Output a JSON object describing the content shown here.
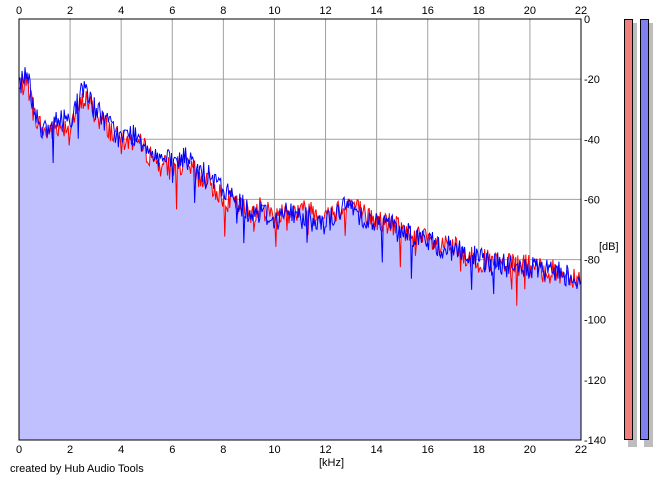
{
  "credit": "created by Hub Audio Tools",
  "x_unit": "[kHz]",
  "y_unit": "[dB]",
  "colors": {
    "background": "#ffffff",
    "grid": "#a0a0a0",
    "fill": "#c0c0ff",
    "left_channel": "#ff0000",
    "right_channel": "#0000ff",
    "meter_left": "#f08080",
    "meter_right": "#8080f0"
  },
  "meters": {
    "left_level_fraction": 1.0,
    "right_level_fraction": 1.0
  },
  "chart_data": {
    "type": "area",
    "x_ticks": [
      0,
      2,
      4,
      6,
      8,
      10,
      12,
      14,
      16,
      18,
      20,
      22
    ],
    "y_ticks": [
      0,
      -20,
      -40,
      -60,
      -80,
      -100,
      -120,
      -140
    ],
    "xlim": [
      0,
      22
    ],
    "ylim": [
      -140,
      0
    ],
    "grid": true,
    "series": [
      {
        "color": "#0000ff",
        "x": [
          0,
          0.3,
          0.6,
          1,
          1.5,
          2,
          2.6,
          3,
          3.5,
          4,
          4.5,
          5,
          5.5,
          6,
          6.5,
          7,
          7.5,
          8,
          8.5,
          9,
          9.5,
          10,
          10.5,
          11,
          11.5,
          12,
          12.5,
          13,
          13.5,
          14,
          14.5,
          15,
          15.5,
          16,
          16.5,
          17,
          17.5,
          18,
          18.5,
          19,
          19.5,
          20,
          20.5,
          21,
          21.5,
          22
        ],
        "y": [
          -22,
          -17,
          -30,
          -38,
          -34,
          -33,
          -22,
          -30,
          -35,
          -40,
          -38,
          -42,
          -46,
          -48,
          -46,
          -50,
          -53,
          -57,
          -60,
          -64,
          -64,
          -67,
          -64,
          -66,
          -65,
          -68,
          -64,
          -62,
          -66,
          -68,
          -68,
          -70,
          -72,
          -74,
          -76,
          -76,
          -78,
          -80,
          -81,
          -82,
          -83,
          -83,
          -84,
          -84,
          -85,
          -87
        ]
      },
      {
        "color": "#ff0000",
        "x": [
          0,
          0.3,
          0.6,
          1,
          1.5,
          2,
          2.6,
          3,
          3.5,
          4,
          4.5,
          5,
          5.5,
          6,
          6.5,
          7,
          7.5,
          8,
          8.5,
          9,
          9.5,
          10,
          10.5,
          11,
          11.5,
          12,
          12.5,
          13,
          13.5,
          14,
          14.5,
          15,
          15.5,
          16,
          16.5,
          17,
          17.5,
          18,
          18.5,
          19,
          19.5,
          20,
          20.5,
          21,
          21.5,
          22
        ],
        "y": [
          -24,
          -20,
          -32,
          -38,
          -36,
          -35,
          -26,
          -32,
          -36,
          -41,
          -40,
          -44,
          -48,
          -50,
          -48,
          -52,
          -55,
          -59,
          -62,
          -64,
          -63,
          -65,
          -64,
          -64,
          -63,
          -66,
          -63,
          -61,
          -65,
          -67,
          -68,
          -70,
          -72,
          -74,
          -76,
          -76,
          -79,
          -80,
          -81,
          -82,
          -82,
          -82,
          -84,
          -84,
          -85,
          -86
        ]
      }
    ]
  }
}
